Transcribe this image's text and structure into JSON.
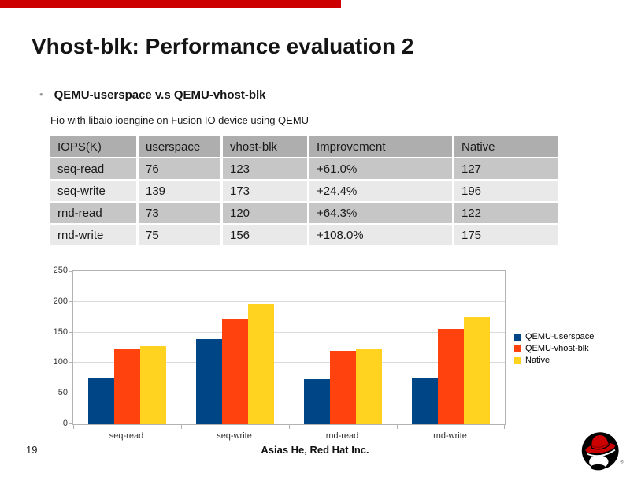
{
  "slide": {
    "title": "Vhost-blk: Performance evaluation 2",
    "bullet_text": "QEMU-userspace v.s QEMU-vhost-blk",
    "subtitle": "Fio with libaio ioengine on Fusion IO device using QEMU",
    "page_number": "19",
    "footer_text": "Asias  He, Red Hat Inc.",
    "accent_bar_color": "#cc0000"
  },
  "table": {
    "headers": [
      "IOPS(K)",
      "userspace",
      "vhost-blk",
      "Improvement",
      "Native"
    ],
    "rows": [
      [
        "seq-read",
        "76",
        "123",
        "+61.0%",
        "127"
      ],
      [
        "seq-write",
        "139",
        "173",
        "+24.4%",
        "196"
      ],
      [
        "rnd-read",
        "73",
        "120",
        "+64.3%",
        "122"
      ],
      [
        "rnd-write",
        "75",
        "156",
        "+108.0%",
        "175"
      ]
    ]
  },
  "chart_data": {
    "type": "bar",
    "categories": [
      "seq-read",
      "seq-write",
      "rnd-read",
      "rnd-write"
    ],
    "series": [
      {
        "name": "QEMU-userspace",
        "color": "#004586",
        "values": [
          76,
          139,
          73,
          75
        ]
      },
      {
        "name": "QEMU-vhost-blk",
        "color": "#ff420e",
        "values": [
          123,
          173,
          120,
          156
        ]
      },
      {
        "name": "Native",
        "color": "#ffd320",
        "values": [
          127,
          196,
          122,
          175
        ]
      }
    ],
    "title": "",
    "xlabel": "",
    "ylabel": "",
    "ylim": [
      0,
      250
    ],
    "yticks": [
      0,
      50,
      100,
      150,
      200,
      250
    ],
    "grid": true,
    "legend_position": "right"
  },
  "logo": {
    "icon": "redhat-shadowman-logo",
    "registered_mark": "®",
    "hat_color": "#cc0000"
  },
  "colors": {
    "table_header_bg": "#aeaeae",
    "table_row_dark_bg": "#c6c6c6",
    "table_row_light_bg": "#e9e9e9",
    "grid_line": "#d9d9d9",
    "axis_line": "#b3b3b3"
  }
}
